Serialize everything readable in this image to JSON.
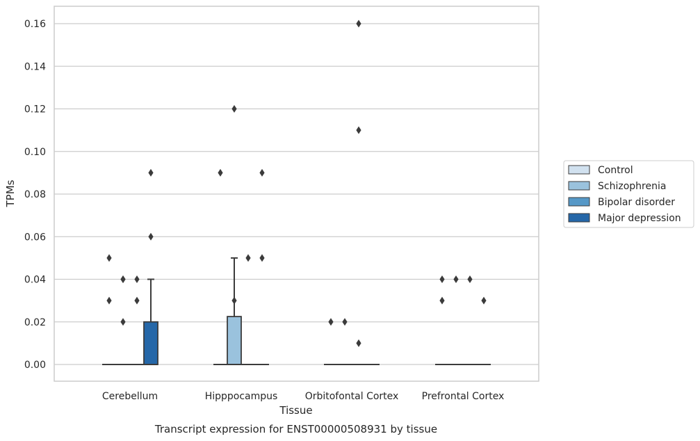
{
  "chart_data": {
    "type": "box",
    "xlabel": "Tissue",
    "ylabel": "TPMs",
    "caption": "Transcript expression for ENST00000508931 by tissue",
    "ylim": [
      -0.008,
      0.168
    ],
    "yticks": [
      0.0,
      0.02,
      0.04,
      0.06,
      0.08,
      0.1,
      0.12,
      0.14,
      0.16
    ],
    "ytick_labels": [
      "0.00",
      "0.02",
      "0.04",
      "0.06",
      "0.08",
      "0.10",
      "0.12",
      "0.14",
      "0.16"
    ],
    "grid": true,
    "legend_position": "right",
    "categories": [
      "Cerebellum",
      "Hipppocampus",
      "Orbitofontal Cortex",
      "Prefrontal Cortex"
    ],
    "series": [
      {
        "name": "Control",
        "color": "#d1e1ef"
      },
      {
        "name": "Schizophrenia",
        "color": "#9ac2dd"
      },
      {
        "name": "Bipolar disorder",
        "color": "#5698c7"
      },
      {
        "name": "Major depression",
        "color": "#2567a8"
      }
    ],
    "boxes": [
      {
        "category": 0,
        "series": 0,
        "q1": 0,
        "median": 0,
        "q3": 0,
        "whisker_low": 0,
        "whisker_high": 0,
        "outliers": [
          0.05,
          0.03
        ]
      },
      {
        "category": 0,
        "series": 1,
        "q1": 0,
        "median": 0,
        "q3": 0,
        "whisker_low": 0,
        "whisker_high": 0,
        "outliers": [
          0.04,
          0.04,
          0.02
        ]
      },
      {
        "category": 0,
        "series": 2,
        "q1": 0,
        "median": 0,
        "q3": 0,
        "whisker_low": 0,
        "whisker_high": 0,
        "outliers": [
          0.04,
          0.03
        ]
      },
      {
        "category": 0,
        "series": 3,
        "q1": 0,
        "median": 0,
        "q3": 0.02,
        "whisker_low": 0,
        "whisker_high": 0.04,
        "outliers": [
          0.09,
          0.06
        ]
      },
      {
        "category": 1,
        "series": 0,
        "q1": 0,
        "median": 0,
        "q3": 0,
        "whisker_low": 0,
        "whisker_high": 0,
        "outliers": [
          0.09
        ]
      },
      {
        "category": 1,
        "series": 1,
        "q1": 0,
        "median": 0,
        "q3": 0.0225,
        "whisker_low": 0,
        "whisker_high": 0.05,
        "outliers": [
          0.12,
          0.03
        ]
      },
      {
        "category": 1,
        "series": 2,
        "q1": 0,
        "median": 0,
        "q3": 0,
        "whisker_low": 0,
        "whisker_high": 0,
        "outliers": [
          0.05
        ]
      },
      {
        "category": 1,
        "series": 3,
        "q1": 0,
        "median": 0,
        "q3": 0,
        "whisker_low": 0,
        "whisker_high": 0,
        "outliers": [
          0.09,
          0.05
        ]
      },
      {
        "category": 2,
        "series": 0,
        "q1": 0,
        "median": 0,
        "q3": 0,
        "whisker_low": 0,
        "whisker_high": 0,
        "outliers": [
          0.02
        ]
      },
      {
        "category": 2,
        "series": 1,
        "q1": 0,
        "median": 0,
        "q3": 0,
        "whisker_low": 0,
        "whisker_high": 0,
        "outliers": [
          0.02
        ]
      },
      {
        "category": 2,
        "series": 2,
        "q1": 0,
        "median": 0,
        "q3": 0,
        "whisker_low": 0,
        "whisker_high": 0,
        "outliers": [
          0.16,
          0.11,
          0.01
        ]
      },
      {
        "category": 2,
        "series": 3,
        "q1": 0,
        "median": 0,
        "q3": 0,
        "whisker_low": 0,
        "whisker_high": 0,
        "outliers": []
      },
      {
        "category": 3,
        "series": 0,
        "q1": 0,
        "median": 0,
        "q3": 0,
        "whisker_low": 0,
        "whisker_high": 0,
        "outliers": [
          0.04,
          0.03
        ]
      },
      {
        "category": 3,
        "series": 1,
        "q1": 0,
        "median": 0,
        "q3": 0,
        "whisker_low": 0,
        "whisker_high": 0,
        "outliers": [
          0.04
        ]
      },
      {
        "category": 3,
        "series": 2,
        "q1": 0,
        "median": 0,
        "q3": 0,
        "whisker_low": 0,
        "whisker_high": 0,
        "outliers": [
          0.04
        ]
      },
      {
        "category": 3,
        "series": 3,
        "q1": 0,
        "median": 0,
        "q3": 0,
        "whisker_low": 0,
        "whisker_high": 0,
        "outliers": [
          0.03
        ]
      }
    ]
  }
}
